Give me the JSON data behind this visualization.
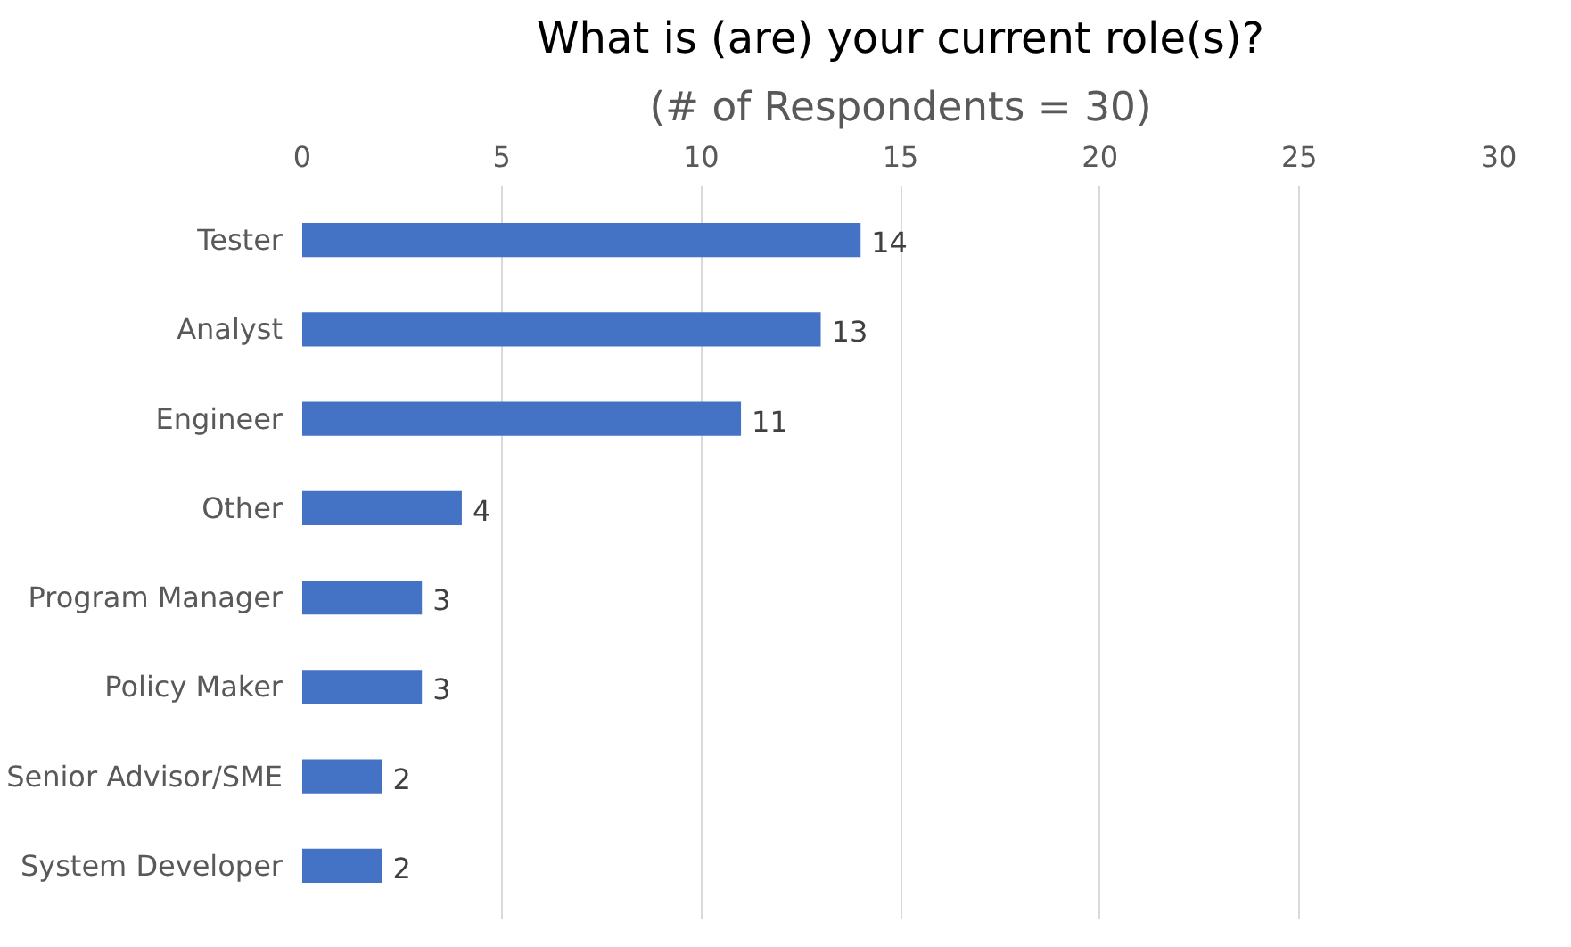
{
  "chart_data": {
    "type": "bar",
    "orientation": "horizontal",
    "title": "What is (are) your current role(s)?",
    "subtitle": "(# of Respondents = 30)",
    "categories": [
      "Tester",
      "Analyst",
      "Engineer",
      "Other",
      "Program Manager",
      "Policy Maker",
      "Senior Advisor/SME",
      "System Developer"
    ],
    "values": [
      14,
      13,
      11,
      4,
      3,
      3,
      2,
      2
    ],
    "color": "#4472c4",
    "xlim": [
      0,
      30
    ],
    "xticks": [
      0,
      5,
      10,
      15,
      20,
      25,
      30
    ],
    "grid": "x",
    "data_labels": true
  }
}
